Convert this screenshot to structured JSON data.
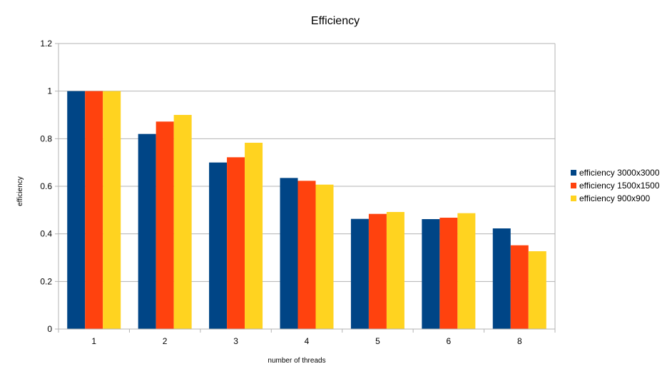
{
  "chart_data": {
    "type": "bar",
    "title": "Efficiency",
    "xlabel": "number of threads",
    "ylabel": "efficiency",
    "categories": [
      "1",
      "2",
      "3",
      "4",
      "5",
      "6",
      "8"
    ],
    "ylim": [
      0,
      1.2
    ],
    "yticks": [
      "0",
      "0.2",
      "0.4",
      "0.6",
      "0.8",
      "1",
      "1.2"
    ],
    "ytick_values": [
      0,
      0.2,
      0.4,
      0.6,
      0.8,
      1,
      1.2
    ],
    "grid": true,
    "legend_position": "right",
    "series": [
      {
        "name": "efficiency 3000x3000",
        "color": "#004586",
        "values": [
          1.0,
          0.82,
          0.7,
          0.635,
          0.463,
          0.462,
          0.423
        ]
      },
      {
        "name": "efficiency 1500x1500",
        "color": "#ff420e",
        "values": [
          1.0,
          0.872,
          0.722,
          0.623,
          0.484,
          0.468,
          0.352
        ]
      },
      {
        "name": "efficiency 900x900",
        "color": "#ffd320",
        "values": [
          1.0,
          0.9,
          0.783,
          0.607,
          0.492,
          0.487,
          0.327
        ]
      }
    ]
  }
}
